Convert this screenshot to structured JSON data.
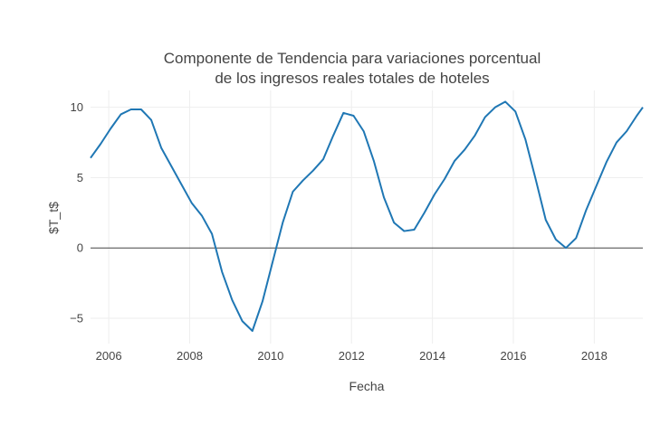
{
  "chart_data": {
    "type": "line",
    "title_lines": [
      "Componente de Tendencia para variaciones porcentual",
      "de los ingresos reales totales de hoteles"
    ],
    "xlabel": "Fecha",
    "ylabel": "$T_t$",
    "xlim": [
      2005.55,
      2019.2
    ],
    "ylim": [
      -6.8,
      11.2
    ],
    "x_ticks": [
      2006,
      2008,
      2010,
      2012,
      2014,
      2016,
      2018
    ],
    "x_tick_labels": [
      "2006",
      "2008",
      "2010",
      "2012",
      "2014",
      "2016",
      "2018"
    ],
    "y_ticks": [
      -5,
      0,
      5,
      10
    ],
    "y_tick_labels": [
      "−5",
      "0",
      "5",
      "10"
    ],
    "grid": true,
    "zero_line": true,
    "series": [
      {
        "color": "#1f77b4",
        "x": [
          2005.55,
          2005.8,
          2006.05,
          2006.3,
          2006.55,
          2006.8,
          2007.05,
          2007.3,
          2007.55,
          2007.8,
          2008.05,
          2008.3,
          2008.55,
          2008.8,
          2009.05,
          2009.3,
          2009.55,
          2009.8,
          2010.05,
          2010.3,
          2010.55,
          2010.8,
          2011.05,
          2011.3,
          2011.55,
          2011.8,
          2012.05,
          2012.3,
          2012.55,
          2012.8,
          2013.05,
          2013.3,
          2013.55,
          2013.8,
          2014.05,
          2014.3,
          2014.55,
          2014.8,
          2015.05,
          2015.3,
          2015.55,
          2015.8,
          2016.05,
          2016.3,
          2016.55,
          2016.8,
          2017.05,
          2017.3,
          2017.55,
          2017.8,
          2018.05,
          2018.3,
          2018.55,
          2018.8,
          2019.05,
          2019.2
        ],
        "y": [
          6.4,
          7.4,
          8.5,
          9.5,
          9.85,
          9.85,
          9.1,
          7.1,
          5.8,
          4.5,
          3.2,
          2.3,
          1.0,
          -1.7,
          -3.7,
          -5.2,
          -5.9,
          -3.8,
          -1.0,
          1.8,
          4.0,
          4.8,
          5.5,
          6.3,
          8.0,
          9.6,
          9.4,
          8.3,
          6.2,
          3.6,
          1.8,
          1.2,
          1.3,
          2.5,
          3.8,
          4.9,
          6.2,
          7.0,
          8.0,
          9.3,
          10.0,
          10.4,
          9.7,
          7.7,
          4.9,
          2.0,
          0.6,
          0.0,
          0.7,
          2.7,
          4.4,
          6.1,
          7.5,
          8.3,
          9.4,
          10.0
        ]
      }
    ]
  }
}
